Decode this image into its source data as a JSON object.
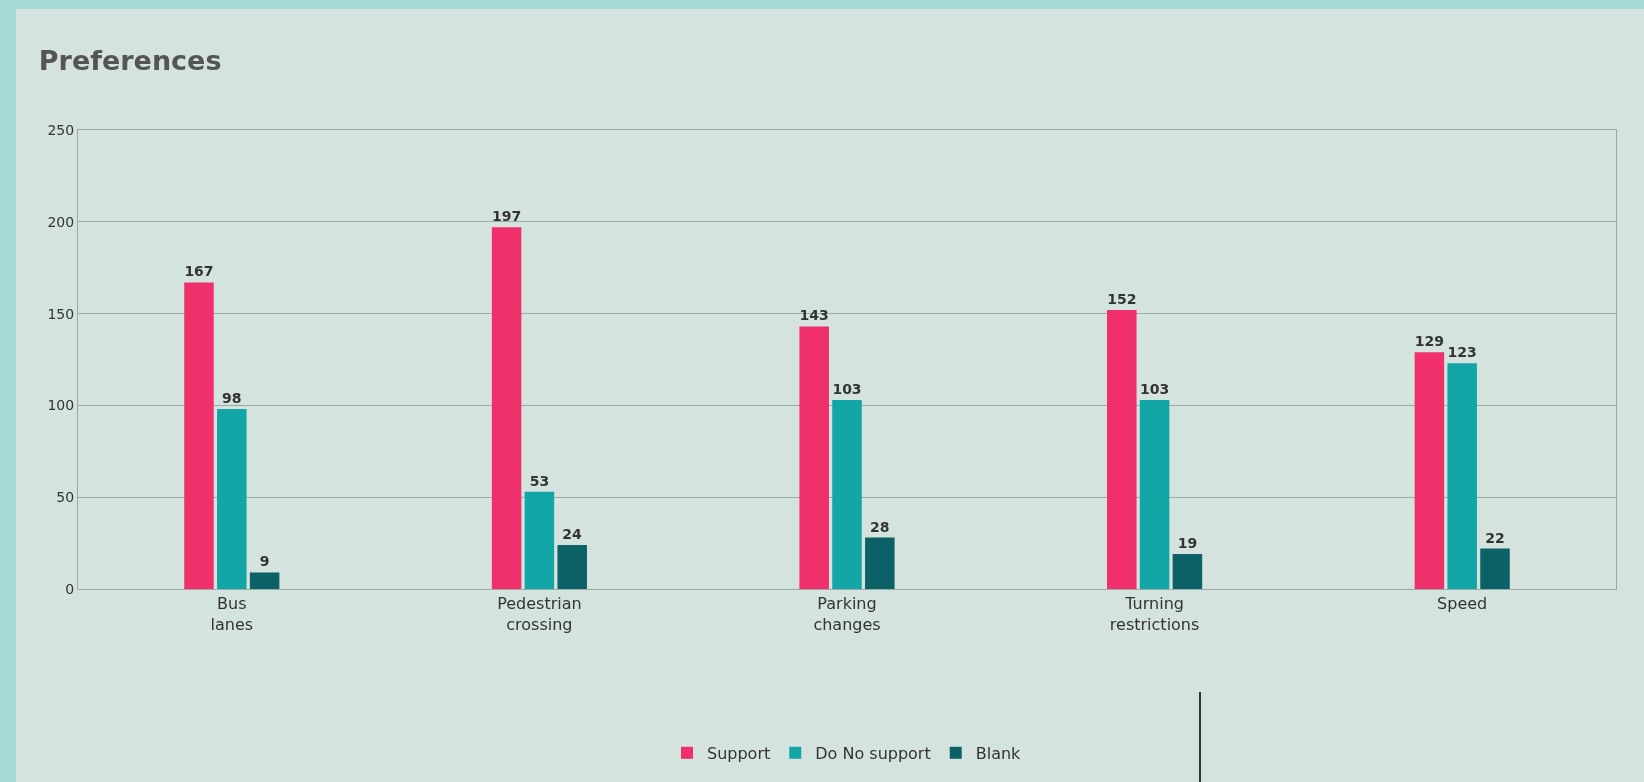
{
  "chart_data": {
    "type": "bar",
    "title": "Preferences",
    "categories": [
      "Bus lanes",
      "Pedestrian crossing",
      "Parking changes",
      "Turning restrictions",
      "Speed"
    ],
    "series": [
      {
        "name": "Support",
        "color": "#f0306a",
        "values": [
          167,
          197,
          143,
          152,
          129
        ]
      },
      {
        "name": "Do No support",
        "color": "#13a6a6",
        "values": [
          98,
          53,
          103,
          103,
          123
        ]
      },
      {
        "name": "Blank",
        "color": "#0b6166",
        "values": [
          9,
          24,
          28,
          19,
          22
        ]
      }
    ],
    "ylim": [
      0,
      250
    ],
    "yticks": [
      0,
      50,
      100,
      150,
      200,
      250
    ],
    "grid": "y",
    "legend": "bottom",
    "data_labels": true
  }
}
